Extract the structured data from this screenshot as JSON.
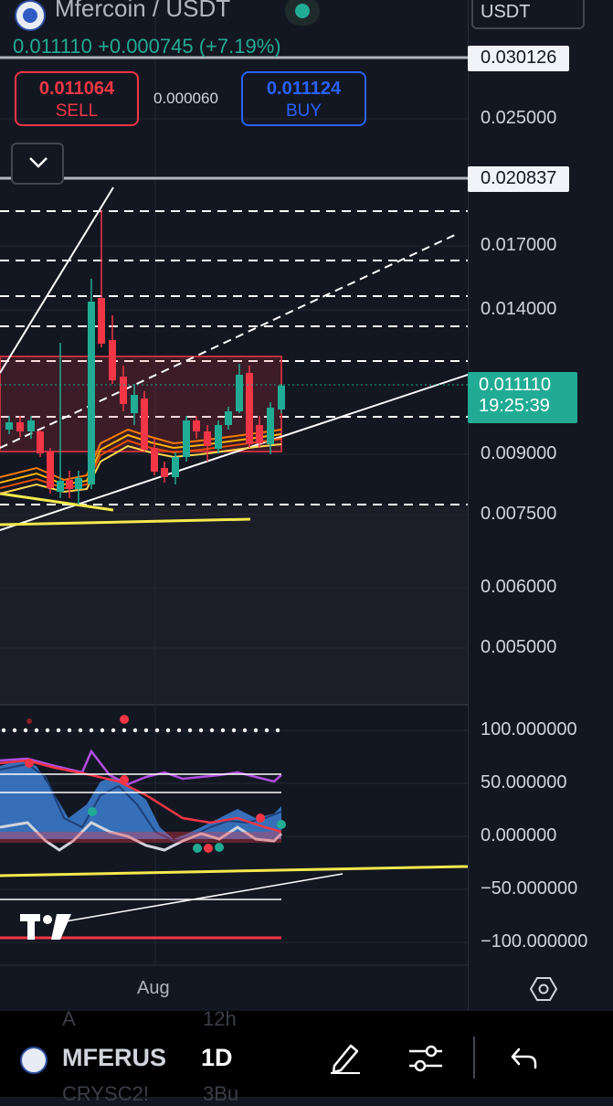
{
  "header": {
    "title": "Mfercoin / USDT",
    "last_price": "0.011110",
    "change": "+0.000745",
    "change_pct": "(+7.19%)",
    "quote_currency": "USDT"
  },
  "trade": {
    "sell_price": "0.011064",
    "sell_label": "SELL",
    "spread": "0.000060",
    "buy_price": "0.011124",
    "buy_label": "BUY"
  },
  "price_axis": {
    "labels": [
      "0.025000",
      "0.017000",
      "0.014000",
      "0.009000",
      "0.007500",
      "0.006000",
      "0.005000"
    ],
    "tag_upper": "0.030126",
    "tag_lower": "0.020837",
    "current_price": "0.011110",
    "countdown": "19:25:39"
  },
  "oscillator_axis": {
    "labels": [
      "100.000000",
      "50.000000",
      "0.000000",
      "−50.000000",
      "−100.000000"
    ]
  },
  "time_axis": {
    "label": "Aug"
  },
  "bottom_bar": {
    "symbol": "MFERUS",
    "interval": "1D",
    "ghost_top_left": "A",
    "ghost_top_right": "12h",
    "ghost_bottom_left": "CRYSC2!",
    "ghost_bottom_right": "3Bu"
  },
  "colors": {
    "background": "#131722",
    "up": "#22ab94",
    "down": "#f23645",
    "buy": "#2962ff",
    "trendline_yellow": "#f5e94d"
  },
  "icons": [
    "chevron-down-icon",
    "settings-hexagon-icon",
    "pencil-icon",
    "sliders-icon",
    "undo-icon",
    "tradingview-logo"
  ]
}
